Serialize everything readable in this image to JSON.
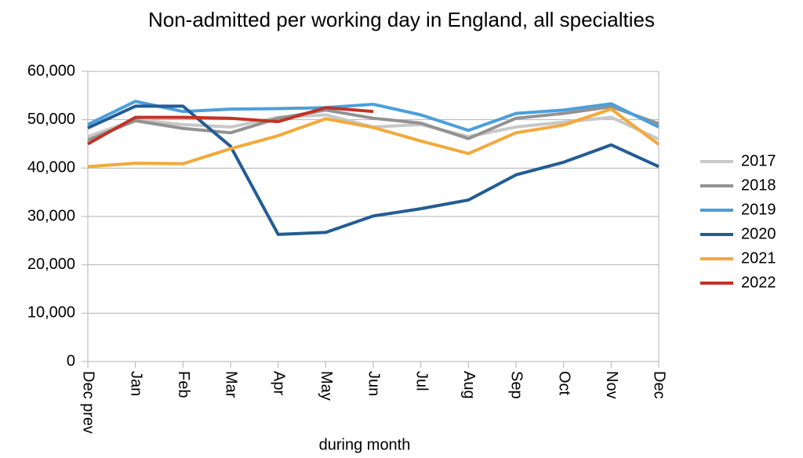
{
  "chart_data": {
    "type": "line",
    "title": "Non-admitted per working day in England, all specialties",
    "x_label": "during  month",
    "categories": [
      "Dec prev",
      "Jan",
      "Feb",
      "Mar",
      "Apr",
      "May",
      "Jun",
      "Jul",
      "Aug",
      "Sep",
      "Oct",
      "Nov",
      "Dec"
    ],
    "series": [
      {
        "name": "2017",
        "color": "#c8c8c8",
        "values": [
          46500,
          50000,
          49000,
          48500,
          50500,
          51000,
          48500,
          49000,
          46500,
          48500,
          49500,
          50500,
          46000
        ]
      },
      {
        "name": "2018",
        "color": "#929292",
        "values": [
          45800,
          49800,
          48200,
          47300,
          50300,
          52000,
          50300,
          49300,
          46100,
          50300,
          51300,
          52700,
          49200
        ]
      },
      {
        "name": "2019",
        "color": "#4b9fdc",
        "values": [
          49000,
          53800,
          51700,
          52200,
          52300,
          52500,
          53200,
          51000,
          47800,
          51300,
          52000,
          53300,
          48500
        ]
      },
      {
        "name": "2020",
        "color": "#245c94",
        "values": [
          48300,
          52800,
          52800,
          44500,
          26300,
          26700,
          30100,
          31600,
          33400,
          38600,
          41200,
          44800,
          40300
        ]
      },
      {
        "name": "2021",
        "color": "#f3a93c",
        "values": [
          40300,
          41000,
          40900,
          44000,
          46700,
          50200,
          48400,
          45600,
          43000,
          47300,
          48900,
          52200,
          44900
        ]
      },
      {
        "name": "2022",
        "color": "#c23324",
        "values": [
          45000,
          50500,
          50500,
          50300,
          49600,
          52500,
          51700,
          null,
          null,
          null,
          null,
          null,
          null
        ]
      }
    ],
    "ylim": [
      0,
      60000
    ],
    "yticks": [
      0,
      {
        "value": 10000,
        "label": "10,000"
      },
      {
        "value": 20000,
        "label": "20,000"
      },
      {
        "value": 30000,
        "label": "30,000"
      },
      {
        "value": 40000,
        "label": "40,000"
      },
      {
        "value": 50000,
        "label": "50,000"
      },
      {
        "value": 60000,
        "label": "60,000"
      }
    ],
    "grid": true,
    "legend": "right"
  }
}
